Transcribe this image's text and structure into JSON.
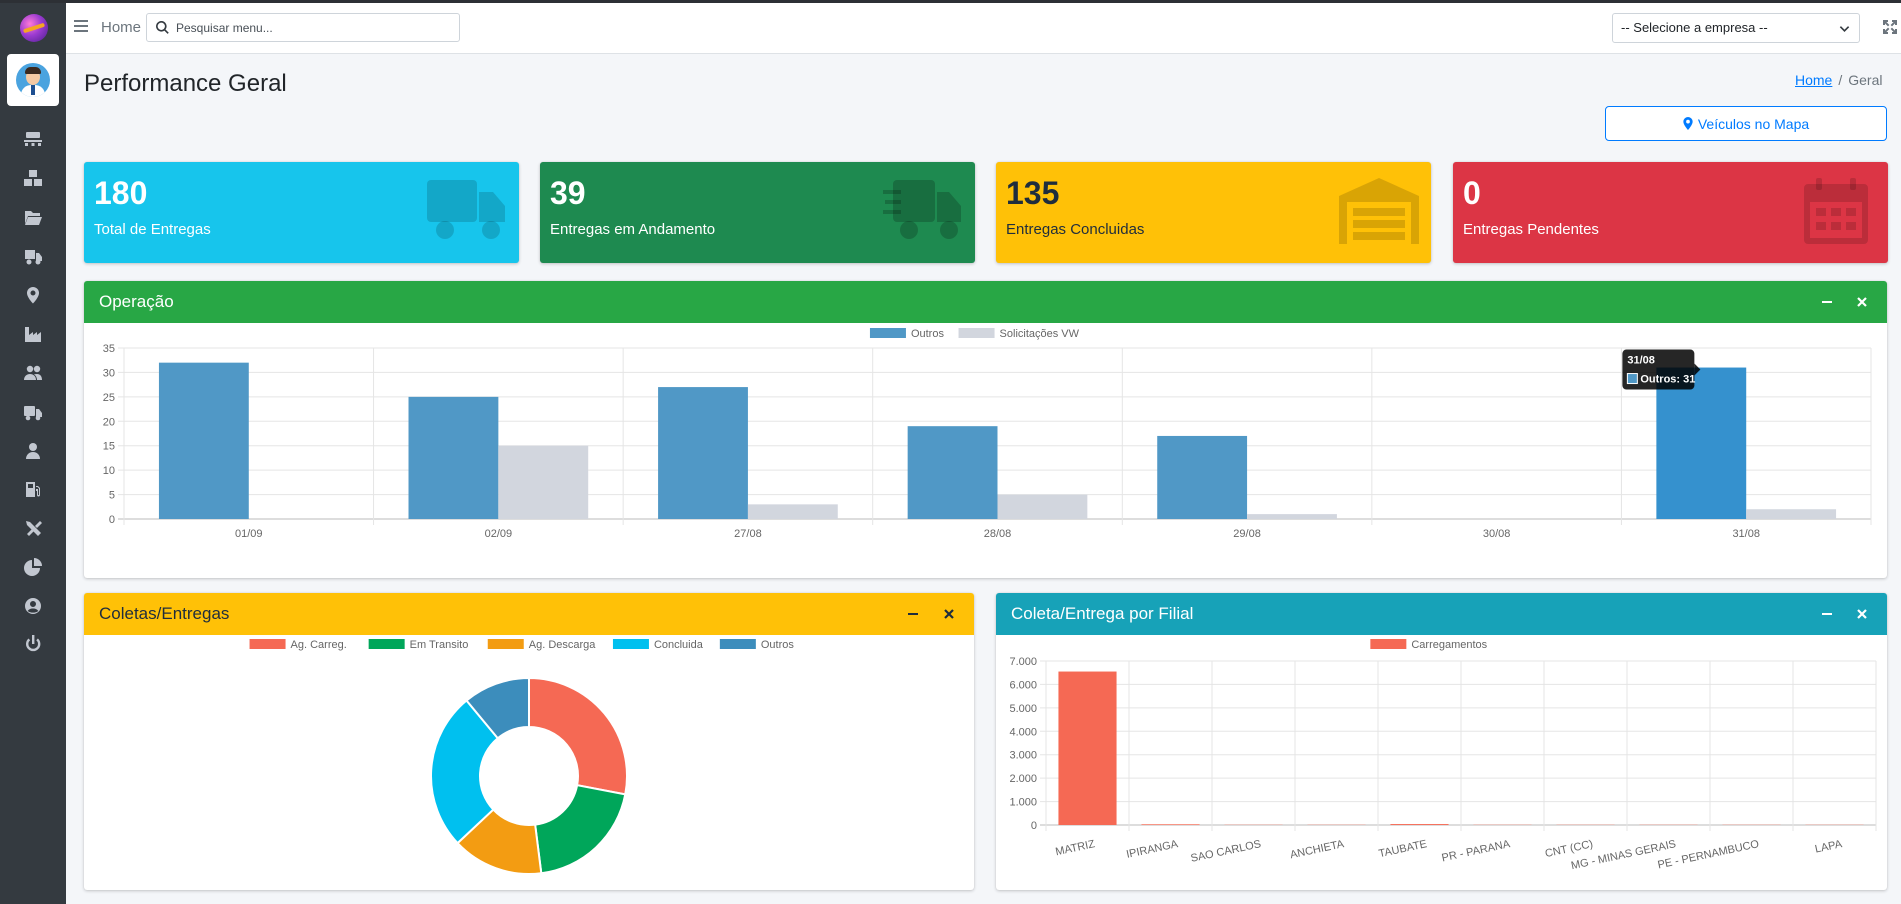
{
  "navbar": {
    "home_label": "Home",
    "search_placeholder": "Pesquisar menu...",
    "company_select_value": "-- Selecione a empresa --"
  },
  "sidebar": {
    "icons": [
      "pallet-icon",
      "boxes-icon",
      "folder-open-icon",
      "truck-loading-icon",
      "map-marker-icon",
      "industry-icon",
      "users-icon",
      "truck-icon",
      "user-tie-icon",
      "gas-pump-icon",
      "tools-icon",
      "pie-chart-icon",
      "user-circle-icon",
      "power-off-icon"
    ]
  },
  "page": {
    "title": "Performance Geral",
    "breadcrumb_home": "Home",
    "breadcrumb_separator": "/",
    "breadcrumb_current": "Geral",
    "map_button_label": "Veículos no Mapa"
  },
  "small_boxes": [
    {
      "value": "180",
      "label": "Total de Entregas",
      "icon": "truck-icon",
      "color": "#17c5ec"
    },
    {
      "value": "39",
      "label": "Entregas em Andamento",
      "icon": "shipping-fast-icon",
      "color": "#1e8a50"
    },
    {
      "value": "135",
      "label": "Entregas Concluidas",
      "icon": "warehouse-icon",
      "color": "#ffc107"
    },
    {
      "value": "0",
      "label": "Entregas Pendentes",
      "icon": "calendar-icon",
      "color": "#dc3545"
    }
  ],
  "cards": {
    "operacao_title": "Operação",
    "coletas_title": "Coletas/Entregas",
    "filial_title": "Coleta/Entrega por Filial"
  },
  "chart_data": [
    {
      "id": "operacao",
      "type": "bar",
      "categories": [
        "01/09",
        "02/09",
        "27/08",
        "28/08",
        "29/08",
        "30/08",
        "31/08"
      ],
      "series": [
        {
          "name": "Outros",
          "color": "#5098c6",
          "values": [
            32,
            25,
            27,
            19,
            17,
            0,
            31
          ]
        },
        {
          "name": "Solicitações VW",
          "color": "#d2d6de",
          "values": [
            0,
            15,
            3,
            5,
            1,
            0,
            2
          ]
        }
      ],
      "ylim": [
        0,
        35
      ],
      "yticks": [
        0,
        5,
        10,
        15,
        20,
        25,
        30,
        35
      ],
      "legend": "top-center",
      "grid": true,
      "tooltip": {
        "title": "31/08",
        "text": "Outros: 31",
        "category_index": 6
      }
    },
    {
      "id": "coletas",
      "type": "pie",
      "donut": true,
      "labels": [
        "Ag. Carreg.",
        "Em Transito",
        "Ag. Descarga",
        "Concluida",
        "Outros"
      ],
      "colors": [
        "#f56954",
        "#00a65a",
        "#f39c12",
        "#00c0ef",
        "#3c8dbc"
      ],
      "values": [
        28,
        20,
        15,
        26,
        11
      ],
      "legend": "top-center"
    },
    {
      "id": "filial",
      "type": "bar",
      "categories": [
        "MATRIZ",
        "IPIRANGA",
        "SAO CARLOS",
        "ANCHIETA",
        "TAUBATE",
        "PR - PARANA",
        "CNT (CC)",
        "MG - MINAS GERAIS",
        "PE - PERNAMBUCO",
        "LAPA"
      ],
      "series": [
        {
          "name": "Carregamentos",
          "color": "#f56954",
          "values": [
            6550,
            30,
            10,
            10,
            40,
            10,
            10,
            10,
            10,
            10
          ]
        }
      ],
      "ylim": [
        0,
        7000
      ],
      "yticks": [
        "0",
        "1.000",
        "2.000",
        "3.000",
        "4.000",
        "5.000",
        "6.000",
        "7.000"
      ],
      "legend": "top-center",
      "grid": true
    }
  ]
}
